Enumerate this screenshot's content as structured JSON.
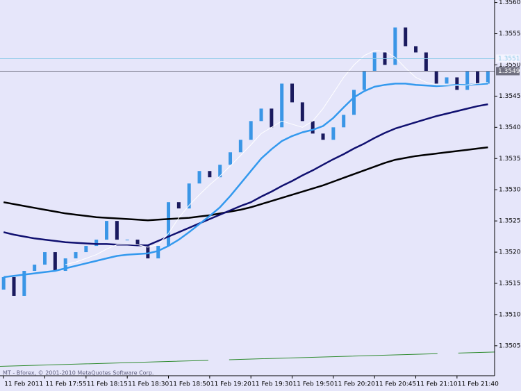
{
  "chart_data": {
    "type": "candlestick",
    "watermark": "MT - Bforex, © 2001-2010 MetaQuotes Software Corp.",
    "categories": [
      "11 Feb 2011",
      null,
      null,
      null,
      "11 Feb 17:55",
      null,
      null,
      null,
      "11 Feb 18:15",
      null,
      null,
      null,
      "11 Feb 18:30",
      null,
      null,
      null,
      "11 Feb 18:50",
      null,
      null,
      null,
      "11 Feb 19:20",
      null,
      null,
      null,
      "11 Feb 19:30",
      null,
      null,
      null,
      "11 Feb 19:50",
      null,
      null,
      null,
      "11 Feb 20:20",
      null,
      null,
      null,
      "11 Feb 20:45",
      null,
      null,
      null,
      "11 Feb 21:10",
      null,
      null,
      null,
      "11 Feb 21:40",
      null,
      null,
      null
    ],
    "open": [
      1.3514,
      1.3516,
      1.3513,
      1.3517,
      1.3518,
      1.352,
      1.3517,
      1.3519,
      1.352,
      1.3521,
      1.3522,
      1.3525,
      1.3522,
      1.3522,
      1.3521,
      1.3519,
      1.3521,
      1.3528,
      1.3527,
      1.3531,
      1.3533,
      1.3532,
      1.3534,
      1.3536,
      1.3538,
      1.3541,
      1.3543,
      1.354,
      1.3547,
      1.3544,
      1.3541,
      1.3539,
      1.3538,
      1.354,
      1.3542,
      1.3546,
      1.3549,
      1.3552,
      1.355,
      1.3556,
      1.3553,
      1.3552,
      1.3549,
      1.3547,
      1.3548,
      1.3546,
      1.3549,
      1.3547
    ],
    "close": [
      1.3516,
      1.3513,
      1.3517,
      1.3518,
      1.352,
      1.3517,
      1.3519,
      1.352,
      1.3521,
      1.3522,
      1.3525,
      1.3522,
      1.3522,
      1.3521,
      1.3519,
      1.3521,
      1.3528,
      1.3527,
      1.3531,
      1.3533,
      1.3532,
      1.3534,
      1.3536,
      1.3538,
      1.3541,
      1.3543,
      1.354,
      1.3547,
      1.3544,
      1.3541,
      1.3539,
      1.3538,
      1.354,
      1.3542,
      1.3546,
      1.3549,
      1.3552,
      1.355,
      1.3556,
      1.3553,
      1.3552,
      1.3549,
      1.3547,
      1.3548,
      1.3546,
      1.3549,
      1.3547,
      1.3549
    ],
    "up_color": "#3a96e6",
    "down_color": "#1a1a5e",
    "moving_averages": [
      {
        "color": "#000000",
        "values": [
          1.3528,
          1.35277,
          1.35274,
          1.35271,
          1.35268,
          1.35265,
          1.35262,
          1.3526,
          1.35258,
          1.35256,
          1.35255,
          1.35254,
          1.35253,
          1.35252,
          1.35251,
          1.35252,
          1.35253,
          1.35254,
          1.35255,
          1.35257,
          1.35259,
          1.35262,
          1.35265,
          1.35268,
          1.35272,
          1.35277,
          1.35282,
          1.35287,
          1.35292,
          1.35297,
          1.35302,
          1.35307,
          1.35313,
          1.35319,
          1.35325,
          1.35331,
          1.35337,
          1.35343,
          1.35348,
          1.35351,
          1.35354,
          1.35356,
          1.35358,
          1.3536,
          1.35362,
          1.35364,
          1.35366,
          1.35368
        ]
      },
      {
        "color": "#101070",
        "values": [
          1.35232,
          1.35228,
          1.35225,
          1.35222,
          1.3522,
          1.35218,
          1.35216,
          1.35215,
          1.35214,
          1.35213,
          1.35213,
          1.35212,
          1.35212,
          1.35211,
          1.35211,
          1.35218,
          1.35225,
          1.35232,
          1.35239,
          1.35246,
          1.35253,
          1.3526,
          1.35267,
          1.35274,
          1.3528,
          1.35289,
          1.35297,
          1.35306,
          1.35314,
          1.35323,
          1.35331,
          1.3534,
          1.35349,
          1.35357,
          1.35366,
          1.35374,
          1.35383,
          1.35391,
          1.35398,
          1.35403,
          1.35408,
          1.35413,
          1.35418,
          1.35422,
          1.35426,
          1.3543,
          1.35434,
          1.35437
        ]
      },
      {
        "color": "#3399ee",
        "values": [
          1.3516,
          1.35162,
          1.35164,
          1.35166,
          1.35168,
          1.3517,
          1.35174,
          1.35178,
          1.35182,
          1.35186,
          1.3519,
          1.35194,
          1.35196,
          1.35197,
          1.35198,
          1.35202,
          1.3521,
          1.3522,
          1.35232,
          1.35245,
          1.35258,
          1.35272,
          1.3529,
          1.3531,
          1.3533,
          1.3535,
          1.35365,
          1.35378,
          1.35386,
          1.35392,
          1.35396,
          1.35402,
          1.35415,
          1.35432,
          1.35448,
          1.35458,
          1.35465,
          1.35468,
          1.3547,
          1.3547,
          1.35468,
          1.35467,
          1.35466,
          1.35467,
          1.35468,
          1.35468,
          1.35469,
          1.3547
        ]
      },
      {
        "color": "#ffffff",
        "values": [
          null,
          null,
          null,
          null,
          null,
          null,
          1.3518,
          1.35184,
          1.3519,
          1.35196,
          1.35205,
          1.35212,
          1.35213,
          1.35212,
          1.35208,
          1.35212,
          1.3523,
          1.35255,
          1.35275,
          1.35292,
          1.35308,
          1.35322,
          1.35338,
          1.35355,
          1.35372,
          1.3539,
          1.354,
          1.3541,
          1.35405,
          1.354,
          1.3541,
          1.3543,
          1.35455,
          1.3548,
          1.355,
          1.35515,
          1.35523,
          1.35522,
          1.35512,
          1.35495,
          1.3548,
          1.35472,
          1.35468,
          1.35468,
          1.35467,
          1.35468,
          1.3547,
          1.35472
        ]
      }
    ],
    "trendline": {
      "color": "#2e8b2e",
      "values": [
        1.35017,
        1.3504
      ]
    },
    "ask_line": {
      "value": 1.3551,
      "color": "#8ecbe8"
    },
    "bid_line": {
      "value": 1.3549,
      "color": "#707080"
    },
    "ylim": [
      1.35002,
      1.35604
    ],
    "yticks": [
      1.3505,
      {
        "value": 1.351,
        "label": "1.3510"
      },
      1.3515,
      {
        "value": 1.352,
        "label": "1.3520"
      },
      1.3525,
      {
        "value": 1.353,
        "label": "1.3530"
      },
      1.3535,
      {
        "value": 1.354,
        "label": "1.3540"
      },
      1.3545,
      {
        "value": 1.355,
        "label": "1.3550"
      },
      1.3555,
      {
        "value": 1.356,
        "label": "1.3560"
      }
    ]
  }
}
